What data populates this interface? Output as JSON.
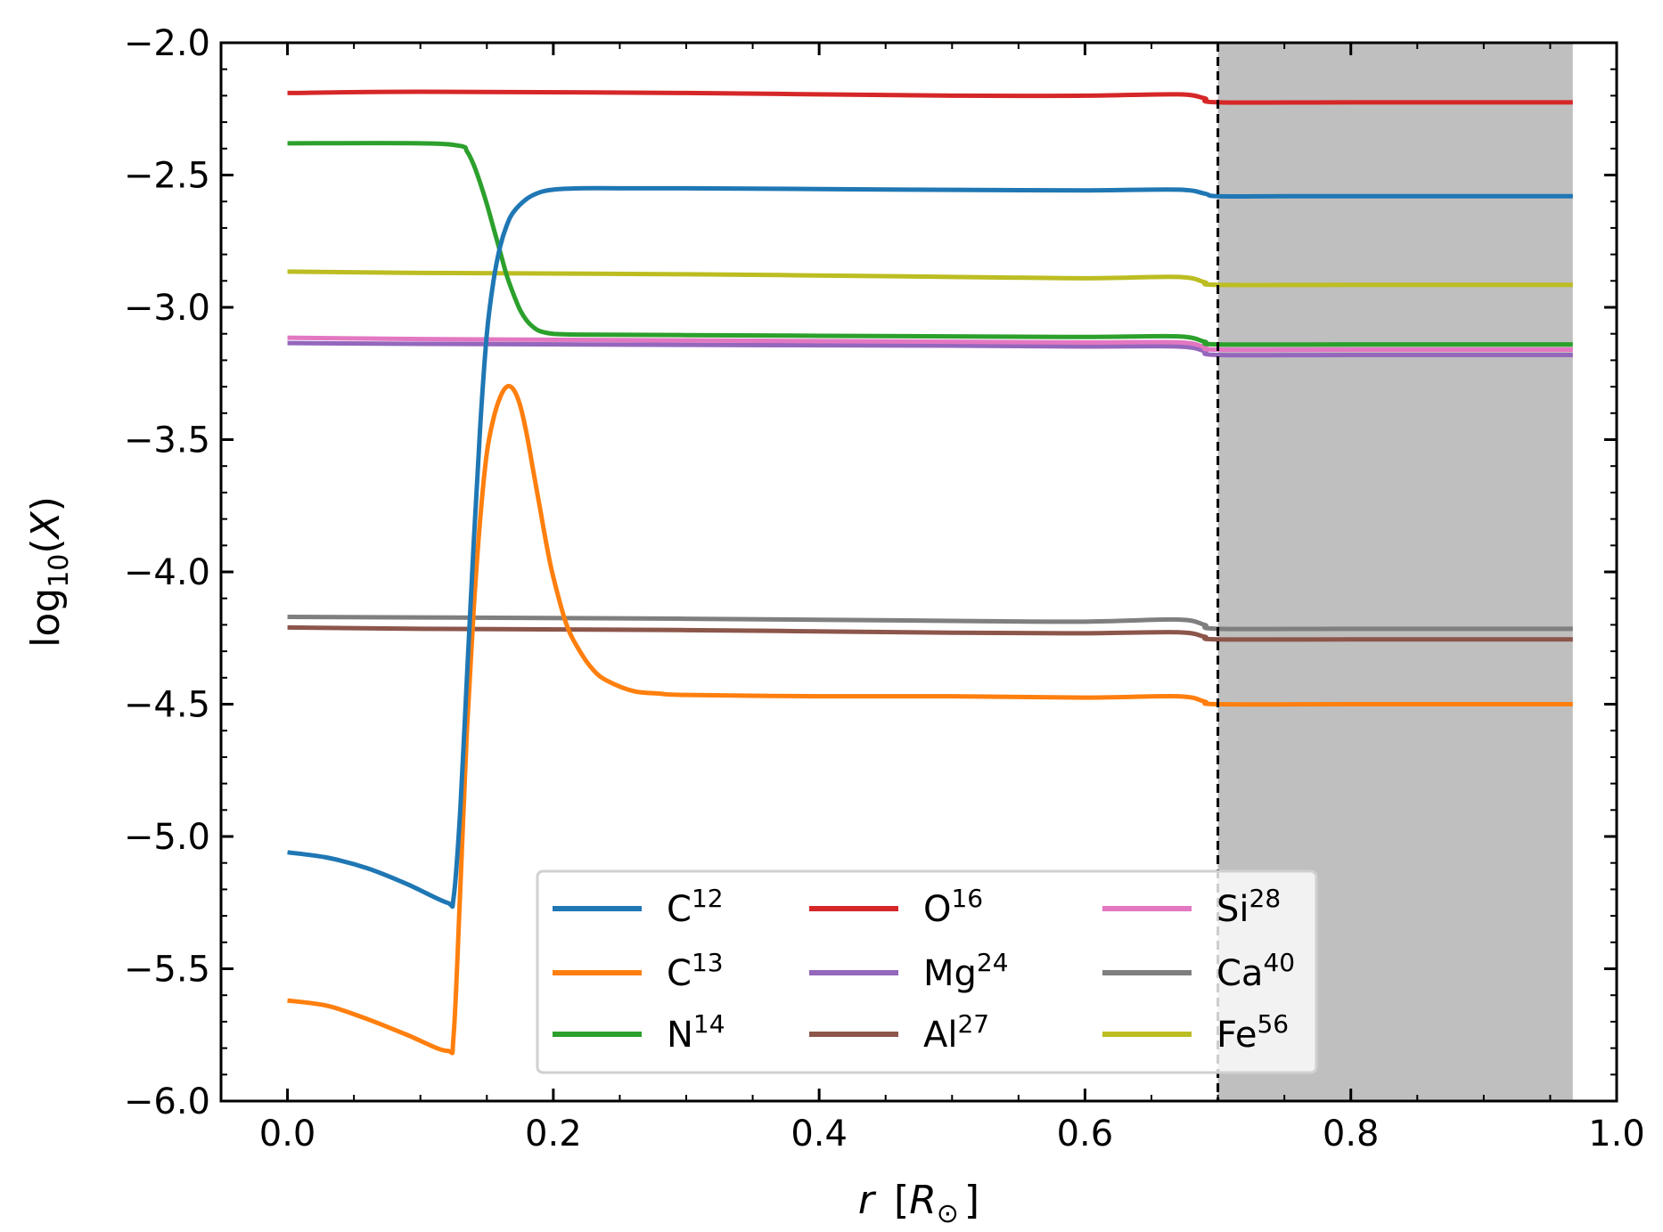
{
  "chart_data": {
    "type": "line",
    "xlabel": "r [R⊙]",
    "xlabel_parts": {
      "var": "r",
      "open": "[",
      "sym": "R",
      "sub": "⊙",
      "close": "]"
    },
    "ylabel": "log10(X)",
    "ylabel_parts": {
      "pre": "log",
      "sub": "10",
      "open": "(",
      "var": "X",
      "close": ")"
    },
    "xlim": [
      -0.05,
      1.0
    ],
    "ylim": [
      -6.0,
      -2.0
    ],
    "x_major_ticks": [
      0.0,
      0.2,
      0.4,
      0.6,
      0.8,
      1.0
    ],
    "x_tick_labels": [
      "0.0",
      "0.2",
      "0.4",
      "0.6",
      "0.8",
      "1.0"
    ],
    "x_minor_step": 0.05,
    "y_major_ticks": [
      -6.0,
      -5.5,
      -5.0,
      -4.5,
      -4.0,
      -3.5,
      -3.0,
      -2.5,
      -2.0
    ],
    "y_tick_labels": [
      "−6.0",
      "−5.5",
      "−5.0",
      "−4.5",
      "−4.0",
      "−3.5",
      "−3.0",
      "−2.5",
      "−2.0"
    ],
    "y_minor_step": 0.1,
    "shaded_region": {
      "x": [
        0.7,
        0.967
      ],
      "color": "#bfbfbf"
    },
    "vline": {
      "x": 0.7,
      "style": "dashed",
      "color": "#000000"
    },
    "legend": {
      "location": "lower-center",
      "columns": 3
    },
    "series": [
      {
        "name": "C",
        "mass": "12",
        "color": "#1f77b4",
        "x": [
          0,
          0.03,
          0.06,
          0.09,
          0.12,
          0.125,
          0.13,
          0.135,
          0.14,
          0.145,
          0.15,
          0.155,
          0.16,
          0.165,
          0.17,
          0.18,
          0.19,
          0.2,
          0.22,
          0.25,
          0.3,
          0.4,
          0.5,
          0.6,
          0.67,
          0.69,
          0.7,
          0.75,
          0.8,
          0.9,
          0.967
        ],
        "values": [
          -5.06,
          -5.08,
          -5.12,
          -5.18,
          -5.25,
          -5.23,
          -4.9,
          -4.4,
          -3.9,
          -3.45,
          -3.1,
          -2.9,
          -2.77,
          -2.69,
          -2.64,
          -2.59,
          -2.565,
          -2.555,
          -2.55,
          -2.55,
          -2.55,
          -2.553,
          -2.556,
          -2.558,
          -2.555,
          -2.57,
          -2.58,
          -2.58,
          -2.58,
          -2.58,
          -2.58
        ]
      },
      {
        "name": "C",
        "mass": "13",
        "color": "#ff7f0e",
        "x": [
          0,
          0.03,
          0.06,
          0.09,
          0.12,
          0.125,
          0.13,
          0.135,
          0.14,
          0.145,
          0.15,
          0.155,
          0.16,
          0.165,
          0.17,
          0.175,
          0.18,
          0.185,
          0.19,
          0.195,
          0.2,
          0.21,
          0.22,
          0.23,
          0.24,
          0.26,
          0.28,
          0.3,
          0.4,
          0.5,
          0.6,
          0.67,
          0.69,
          0.7,
          0.8,
          0.9,
          0.967
        ],
        "values": [
          -5.62,
          -5.64,
          -5.69,
          -5.75,
          -5.81,
          -5.75,
          -5.2,
          -4.6,
          -4.15,
          -3.8,
          -3.55,
          -3.42,
          -3.34,
          -3.3,
          -3.31,
          -3.37,
          -3.48,
          -3.62,
          -3.76,
          -3.9,
          -4.02,
          -4.2,
          -4.3,
          -4.37,
          -4.41,
          -4.45,
          -4.46,
          -4.465,
          -4.47,
          -4.47,
          -4.475,
          -4.47,
          -4.49,
          -4.5,
          -4.5,
          -4.5,
          -4.5
        ]
      },
      {
        "name": "N",
        "mass": "14",
        "color": "#2ca02c",
        "x": [
          0,
          0.1,
          0.13,
          0.135,
          0.14,
          0.145,
          0.15,
          0.155,
          0.16,
          0.165,
          0.17,
          0.175,
          0.18,
          0.185,
          0.19,
          0.2,
          0.22,
          0.3,
          0.5,
          0.6,
          0.67,
          0.69,
          0.7,
          0.8,
          0.967
        ],
        "values": [
          -2.38,
          -2.38,
          -2.39,
          -2.41,
          -2.46,
          -2.53,
          -2.61,
          -2.7,
          -2.79,
          -2.88,
          -2.95,
          -3.01,
          -3.05,
          -3.075,
          -3.09,
          -3.1,
          -3.103,
          -3.105,
          -3.11,
          -3.112,
          -3.11,
          -3.13,
          -3.14,
          -3.14,
          -3.14
        ]
      },
      {
        "name": "O",
        "mass": "16",
        "color": "#d62728",
        "x": [
          0,
          0.1,
          0.3,
          0.5,
          0.6,
          0.67,
          0.69,
          0.7,
          0.8,
          0.967
        ],
        "values": [
          -2.19,
          -2.185,
          -2.19,
          -2.2,
          -2.2,
          -2.195,
          -2.21,
          -2.225,
          -2.225,
          -2.225
        ]
      },
      {
        "name": "Mg",
        "mass": "24",
        "color": "#9467bd",
        "x": [
          0,
          0.1,
          0.3,
          0.5,
          0.6,
          0.67,
          0.69,
          0.7,
          0.8,
          0.967
        ],
        "values": [
          -3.135,
          -3.138,
          -3.142,
          -3.145,
          -3.148,
          -3.148,
          -3.165,
          -3.18,
          -3.18,
          -3.18
        ]
      },
      {
        "name": "Al",
        "mass": "27",
        "color": "#8c564b",
        "x": [
          0,
          0.1,
          0.3,
          0.5,
          0.6,
          0.67,
          0.69,
          0.7,
          0.8,
          0.967
        ],
        "values": [
          -4.21,
          -4.215,
          -4.22,
          -4.23,
          -4.232,
          -4.228,
          -4.245,
          -4.255,
          -4.255,
          -4.255
        ]
      },
      {
        "name": "Si",
        "mass": "28",
        "color": "#e377c2",
        "x": [
          0,
          0.1,
          0.3,
          0.5,
          0.6,
          0.67,
          0.69,
          0.7,
          0.8,
          0.967
        ],
        "values": [
          -3.115,
          -3.12,
          -3.125,
          -3.13,
          -3.133,
          -3.132,
          -3.15,
          -3.16,
          -3.16,
          -3.16
        ]
      },
      {
        "name": "Ca",
        "mass": "40",
        "color": "#7f7f7f",
        "x": [
          0,
          0.1,
          0.3,
          0.5,
          0.6,
          0.67,
          0.69,
          0.7,
          0.8,
          0.967
        ],
        "values": [
          -4.17,
          -4.172,
          -4.177,
          -4.185,
          -4.188,
          -4.18,
          -4.2,
          -4.215,
          -4.215,
          -4.215
        ]
      },
      {
        "name": "Fe",
        "mass": "56",
        "color": "#bcbd22",
        "x": [
          0,
          0.1,
          0.3,
          0.5,
          0.6,
          0.67,
          0.69,
          0.7,
          0.8,
          0.967
        ],
        "values": [
          -2.865,
          -2.87,
          -2.875,
          -2.885,
          -2.89,
          -2.885,
          -2.905,
          -2.915,
          -2.915,
          -2.915
        ]
      }
    ]
  }
}
